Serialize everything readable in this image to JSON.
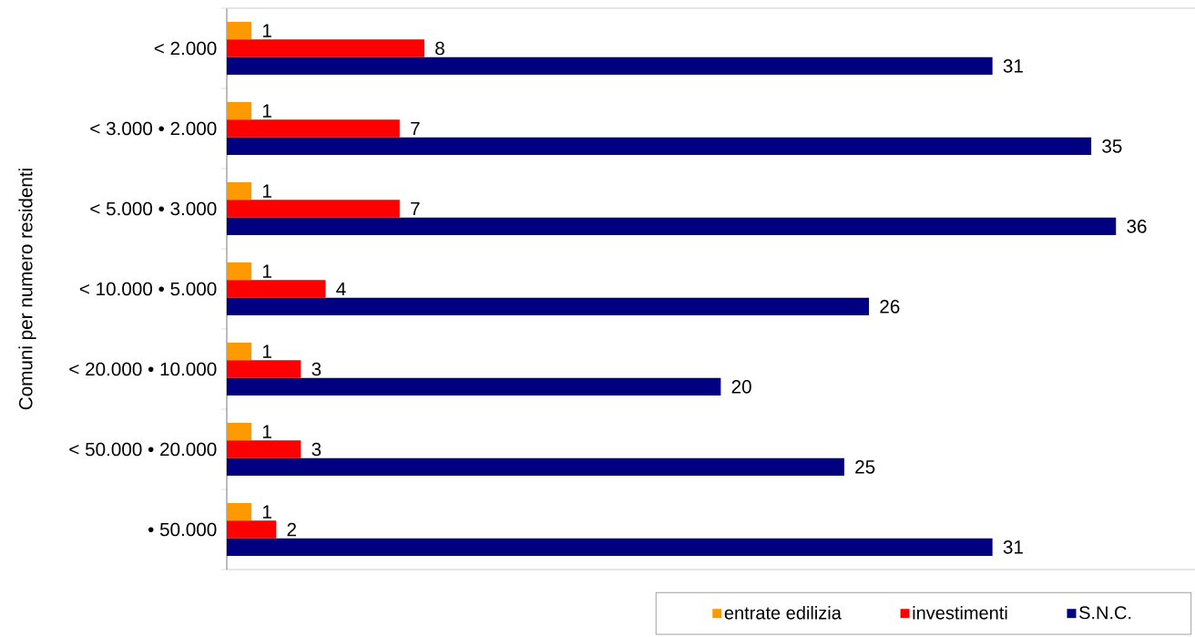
{
  "chart_data": {
    "type": "bar",
    "orientation": "horizontal",
    "ylabel": "Comuni per numero residenti",
    "categories": [
      "< 2.000",
      "< 3.000 • 2.000",
      "< 5.000 • 3.000",
      "< 10.000 • 5.000",
      "< 20.000 • 10.000",
      "< 50.000 • 20.000",
      "• 50.000"
    ],
    "series": [
      {
        "name": "entrate edilizia",
        "color": "#ff9900",
        "values": [
          1,
          1,
          1,
          1,
          1,
          1,
          1
        ]
      },
      {
        "name": "investimenti",
        "color": "#ff0000",
        "values": [
          8,
          7,
          7,
          4,
          3,
          3,
          2
        ]
      },
      {
        "name": "S.N.C.",
        "color": "#000080",
        "values": [
          31,
          35,
          36,
          26,
          20,
          25,
          31
        ]
      }
    ],
    "xlim": [
      0,
      39.2
    ],
    "data_labels": true,
    "legend": "bottom right",
    "tick_labels": "y"
  }
}
